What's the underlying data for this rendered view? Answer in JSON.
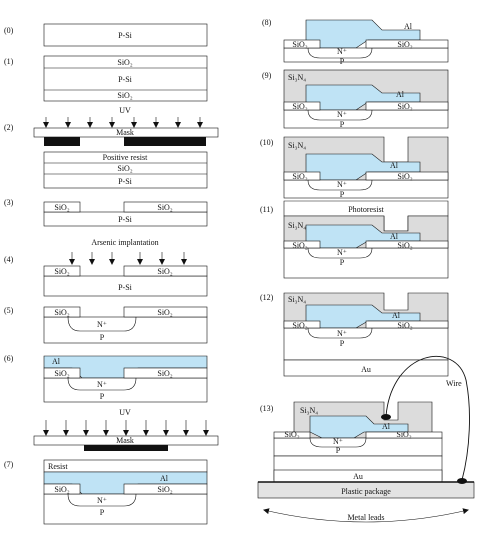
{
  "steps": [
    "(0)",
    "(1)",
    "(2)",
    "(3)",
    "(4)",
    "(5)",
    "(6)",
    "(7)",
    "(8)",
    "(9)",
    "(10)",
    "(11)",
    "(12)",
    "(13)"
  ],
  "labels": {
    "p_si": "P-Si",
    "sio2": "SiO₂",
    "uv": "UV",
    "mask": "Mask",
    "positive_resist": "Positive resist",
    "arsenic_implantation": "Arsenic implantation",
    "n_plus": "N⁺",
    "p": "P",
    "al": "Al",
    "resist": "Resist",
    "si3n4": "Si₃N₄",
    "photoresist": "Photoresist",
    "au": "Au",
    "wire": "Wire",
    "plastic_package": "Plastic package",
    "metal_leads": "Metal leads"
  },
  "colors": {
    "aluminum": "#bfe3f5",
    "nitride": "#dcdcdc",
    "mask_bar": "#111111",
    "package": "#e3e3e3"
  }
}
